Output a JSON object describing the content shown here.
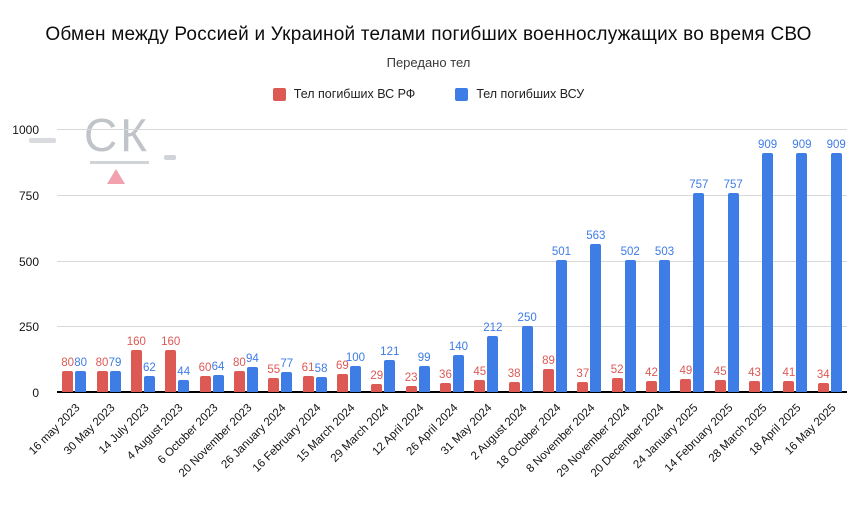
{
  "chart_data": {
    "type": "bar",
    "title": "Обмен между Россией и Украиной телами погибших военнослужащих во время СВО",
    "subtitle": "Передано тел",
    "categories": [
      "16 may 2023",
      "30 May 2023",
      "14 July 2023",
      "4 August 2023",
      "6 October 2023",
      "20 November 2023",
      "26 January 2024",
      "16 February 2024",
      "15 March 2024",
      "29 March 2024",
      "12 April 2024",
      "26 April 2024",
      "31 May 2024",
      "2 August 2024",
      "18 October 2024",
      "8 November 2024",
      "29 November 2024",
      "20 December 2024",
      "24 January 2025",
      "14 February 2025",
      "28 March 2025",
      "18 April 2025",
      "16 May 2025"
    ],
    "series": [
      {
        "name": "Тел погибших ВС  РФ",
        "color": "#dc5954",
        "values": [
          80,
          80,
          160,
          160,
          60,
          80,
          55,
          61,
          69,
          29,
          23,
          36,
          45,
          38,
          89,
          37,
          52,
          42,
          49,
          45,
          43,
          41,
          34
        ]
      },
      {
        "name": "Тел погибших ВСУ",
        "color": "#3e7ce6",
        "values": [
          80,
          79,
          62,
          44,
          64,
          94,
          77,
          58,
          100,
          121,
          99,
          140,
          212,
          250,
          501,
          563,
          502,
          503,
          757,
          757,
          909,
          909,
          909
        ]
      }
    ],
    "ylim": [
      0,
      1000
    ],
    "yticks": [
      0,
      250,
      500,
      750,
      1000
    ],
    "grid": true,
    "legend_position": "top",
    "value_labels": true
  },
  "watermark": {
    "text": "СК"
  }
}
